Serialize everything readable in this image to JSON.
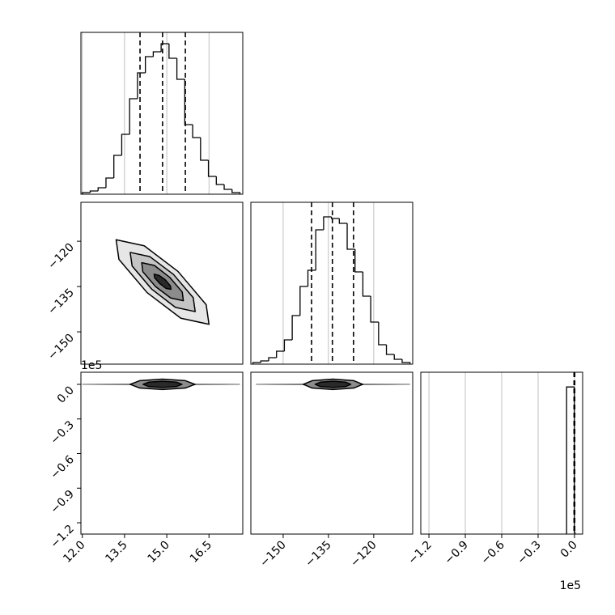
{
  "chart_data": [
    {
      "type": "histogram",
      "bins": [
        12.0,
        12.28,
        12.56,
        12.84,
        13.12,
        13.4,
        13.68,
        13.96,
        14.24,
        14.52,
        14.8,
        15.08,
        15.36,
        15.64,
        15.92,
        16.2,
        16.48,
        16.76,
        17.04,
        17.32,
        17.6
      ],
      "values": [
        1,
        2,
        4,
        10,
        24,
        37,
        59,
        75,
        85,
        88,
        93,
        84,
        71,
        43,
        35,
        21,
        11,
        6,
        3,
        1
      ],
      "quantiles": [
        14.05,
        14.85,
        15.66
      ],
      "xlim": [
        11.95,
        17.7
      ],
      "ylim": [
        0,
        100
      ],
      "color": "#000000",
      "grid": true
    },
    {
      "type": "contour",
      "xlim": [
        11.95,
        17.7
      ],
      "ylim": [
        -160.7,
        -107.1
      ],
      "yticks": [
        {
          "value": -120,
          "label": "−120"
        },
        {
          "value": -135,
          "label": "−135"
        },
        {
          "value": -150,
          "label": "−150"
        }
      ],
      "contours": [
        {
          "x": [
            13.2,
            14.2,
            15.4,
            16.4,
            16.5,
            15.5,
            14.3,
            13.3
          ],
          "y": [
            -119.5,
            -121.5,
            -130,
            -141,
            -147.5,
            -145.5,
            -137,
            -126
          ]
        },
        {
          "x": [
            13.7,
            14.4,
            15.24,
            15.94,
            16.01,
            15.31,
            14.47,
            13.77
          ],
          "y": [
            -123.7,
            -125.1,
            -131.0,
            -138.7,
            -143.3,
            -141.9,
            -135.9,
            -128.2
          ]
        },
        {
          "x": [
            14.11,
            14.56,
            15.1,
            15.55,
            15.59,
            15.14,
            14.6,
            14.15
          ],
          "y": [
            -127.1,
            -128.0,
            -131.9,
            -136.8,
            -139.7,
            -138.8,
            -135.0,
            -130.1
          ]
        },
        {
          "x": [
            14.55,
            14.73,
            14.95,
            15.13,
            15.15,
            14.97,
            14.75,
            14.57
          ],
          "y": [
            -130.9,
            -131.3,
            -132.8,
            -134.8,
            -135.9,
            -135.6,
            -134.0,
            -132.1
          ]
        }
      ]
    },
    {
      "type": "histogram",
      "bins": [
        -160,
        -157.4,
        -154.8,
        -152.2,
        -149.6,
        -147,
        -144.4,
        -141.8,
        -139.2,
        -136.6,
        -134,
        -131.4,
        -128.8,
        -126.2,
        -123.6,
        -121,
        -118.4,
        -115.8,
        -113.2,
        -110.6,
        -108
      ],
      "values": [
        1,
        2,
        4,
        8,
        15,
        30,
        48,
        58,
        83,
        91,
        90,
        87,
        71,
        57,
        42,
        26,
        12,
        6,
        3,
        1
      ],
      "quantiles": [
        -140.6,
        -133.7,
        -126.7
      ],
      "xlim": [
        -160.7,
        -107.1
      ],
      "ylim": [
        0,
        100
      ],
      "color": "#000000",
      "grid": true
    },
    {
      "type": "contour",
      "xlim": [
        11.95,
        17.7
      ],
      "ylim": [
        -1.298,
        0.105
      ],
      "xticks": [
        {
          "value": 12,
          "label": "12.0"
        },
        {
          "value": 13.5,
          "label": "13.5"
        },
        {
          "value": 15,
          "label": "15.0"
        },
        {
          "value": 16.5,
          "label": "16.5"
        }
      ],
      "yticks": [
        {
          "value": 0,
          "label": "0.0"
        },
        {
          "value": -0.3,
          "label": "−0.3"
        },
        {
          "value": -0.6,
          "label": "−0.6"
        },
        {
          "value": -0.9,
          "label": "−0.9"
        },
        {
          "value": -1.2,
          "label": "−1.2"
        }
      ],
      "offset_label": "1e5",
      "contours": [
        {
          "x": [
            12.0,
            14.85,
            17.6,
            14.85
          ],
          "y": [
            0,
            0.008,
            0,
            -0.008
          ]
        },
        {
          "x": [
            16.0,
            15.66,
            14.85,
            14.04,
            13.7,
            14.04,
            14.85,
            15.66
          ],
          "y": [
            0,
            0.032,
            0.045,
            0.032,
            0,
            -0.032,
            -0.045,
            -0.032
          ]
        },
        {
          "x": [
            15.54,
            15.34,
            14.85,
            14.36,
            14.16,
            14.36,
            14.85,
            15.34
          ],
          "y": [
            0,
            0.019,
            0.027,
            0.019,
            0,
            -0.019,
            -0.027,
            -0.019
          ]
        }
      ]
    },
    {
      "type": "contour",
      "xlim": [
        -160.7,
        -107.1
      ],
      "ylim": [
        -1.298,
        0.105
      ],
      "xticks": [
        {
          "value": -150,
          "label": "−150"
        },
        {
          "value": -135,
          "label": "−135"
        },
        {
          "value": -120,
          "label": "−120"
        }
      ],
      "contours": [
        {
          "x": [
            -159,
            -133.5,
            -108,
            -133.5
          ],
          "y": [
            0,
            0.008,
            0,
            -0.008
          ]
        },
        {
          "x": [
            -123.7,
            -126.6,
            -133.5,
            -140.4,
            -143.3,
            -140.4,
            -133.5,
            -126.6
          ],
          "y": [
            0,
            0.032,
            0.045,
            0.032,
            0,
            -0.032,
            -0.045,
            -0.032
          ]
        },
        {
          "x": [
            -127.6,
            -129.3,
            -133.5,
            -137.7,
            -139.4,
            -137.7,
            -133.5,
            -129.3
          ],
          "y": [
            0,
            0.019,
            0.027,
            0.019,
            0,
            -0.019,
            -0.027,
            -0.019
          ]
        }
      ]
    },
    {
      "type": "histogram",
      "bins": [
        -0.065,
        -0.001,
        0.004
      ],
      "values": [
        100,
        1
      ],
      "quantiles": [
        -0.004,
        -0.001,
        0.002
      ],
      "xlim": [
        -1.267,
        0.067
      ],
      "ylim": [
        0,
        110
      ],
      "color": "#000000",
      "grid": true,
      "xticks": [
        {
          "value": -1.2,
          "label": "−1.2"
        },
        {
          "value": -0.9,
          "label": "−0.9"
        },
        {
          "value": -0.6,
          "label": "−0.6"
        },
        {
          "value": -0.3,
          "label": "−0.3"
        },
        {
          "value": 0,
          "label": "0.0"
        }
      ],
      "offset_label": "1e5"
    }
  ]
}
